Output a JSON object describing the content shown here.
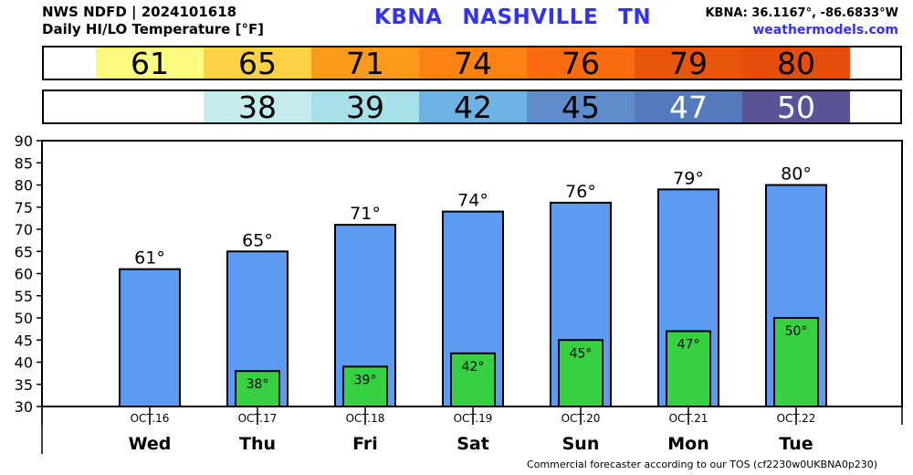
{
  "header": {
    "source_line": "NWS NDFD | 2024101618",
    "subtitle": "Daily HI/LO Temperature [°F]",
    "station": "KBNA",
    "city": "NASHVILLE",
    "state": "TN",
    "coords": "KBNA: 36.1167°, -86.6833°W",
    "site": "weathermodels.com"
  },
  "high_strip": [
    {
      "value": "61",
      "color": "#fbfb7f"
    },
    {
      "value": "65",
      "color": "#fcd146"
    },
    {
      "value": "71",
      "color": "#fc9a1c"
    },
    {
      "value": "74",
      "color": "#fc8214"
    },
    {
      "value": "76",
      "color": "#fb6b0f"
    },
    {
      "value": "79",
      "color": "#e8560d"
    },
    {
      "value": "80",
      "color": "#e54d0b"
    }
  ],
  "low_strip": [
    {
      "value": "38",
      "color": "#c5ecec",
      "text_color": "#000000"
    },
    {
      "value": "39",
      "color": "#a6e0e9",
      "text_color": "#000000"
    },
    {
      "value": "42",
      "color": "#6eb2e4",
      "text_color": "#000000"
    },
    {
      "value": "45",
      "color": "#5f8dcb",
      "text_color": "#000000"
    },
    {
      "value": "47",
      "color": "#5579bd",
      "text_color": "#ffffff"
    },
    {
      "value": "50",
      "color": "#5a5496",
      "text_color": "#ffffff"
    }
  ],
  "chart_data": {
    "type": "bar",
    "categories": [
      "Wed",
      "Thu",
      "Fri",
      "Sat",
      "Sun",
      "Mon",
      "Tue"
    ],
    "dates": [
      "OCT.16",
      "OCT.17",
      "OCT.18",
      "OCT.19",
      "OCT.20",
      "OCT.21",
      "OCT.22"
    ],
    "series": [
      {
        "name": "HI",
        "values": [
          61,
          65,
          71,
          74,
          76,
          79,
          80
        ],
        "color": "#5b9cf2"
      },
      {
        "name": "LO",
        "values": [
          null,
          38,
          39,
          42,
          45,
          47,
          50
        ],
        "color": "#36d040"
      }
    ],
    "hi_labels": [
      "61°",
      "65°",
      "71°",
      "74°",
      "76°",
      "79°",
      "80°"
    ],
    "lo_labels": [
      "",
      "38°",
      "39°",
      "42°",
      "45°",
      "47°",
      "50°"
    ],
    "ylim": [
      30,
      90
    ],
    "yticks": [
      30,
      35,
      40,
      45,
      50,
      55,
      60,
      65,
      70,
      75,
      80,
      85,
      90
    ],
    "grid": false
  },
  "footer": "Commercial forecaster according to our TOS (cf2230w0UKBNA0p230)"
}
